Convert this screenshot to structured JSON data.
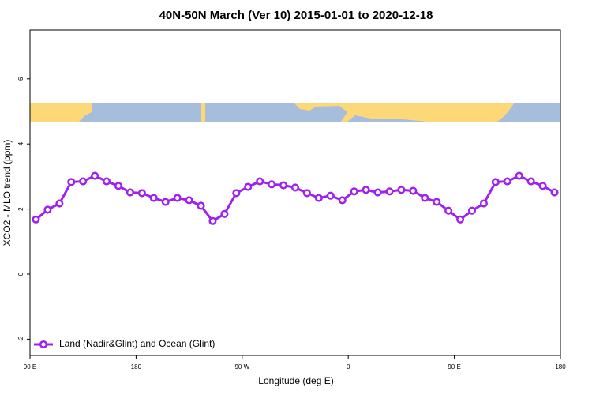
{
  "chart_data": {
    "type": "line",
    "title": "40N-50N March (Ver 10)   2015-01-01 to 2020-12-18",
    "xlabel": "Longitude (deg E)",
    "ylabel": "XCO2 - MLO trend (ppm)",
    "x": [
      95,
      105,
      115,
      125,
      135,
      145,
      155,
      165,
      175,
      185,
      195,
      205,
      215,
      225,
      235,
      245,
      255,
      265,
      275,
      285,
      295,
      305,
      315,
      325,
      335,
      345,
      355,
      365,
      375,
      385,
      395,
      405,
      415,
      425,
      435,
      445,
      455,
      465,
      475,
      485,
      495,
      505,
      515,
      525,
      535
    ],
    "series": [
      {
        "name": "Land (Nadir&Glint) and Ocean (Glint)",
        "color": "#a020f0",
        "values": [
          1.68,
          1.98,
          2.17,
          2.83,
          2.85,
          3.02,
          2.85,
          2.71,
          2.51,
          2.49,
          2.34,
          2.22,
          2.34,
          2.27,
          2.1,
          1.63,
          1.85,
          2.49,
          2.68,
          2.85,
          2.76,
          2.73,
          2.66,
          2.49,
          2.34,
          2.41,
          2.27,
          2.54,
          2.59,
          2.51,
          2.54,
          2.59,
          2.56,
          2.34,
          2.22,
          1.95,
          1.68,
          1.95,
          2.17,
          2.83,
          2.85,
          3.02,
          2.85,
          2.71,
          2.51
        ]
      }
    ],
    "xlim": [
      90,
      540
    ],
    "xticks": [
      {
        "value": 90,
        "label": "90 E"
      },
      {
        "value": 180,
        "label": "180"
      },
      {
        "value": 270,
        "label": "90 W"
      },
      {
        "value": 360,
        "label": "0"
      },
      {
        "value": 450,
        "label": "90 E"
      },
      {
        "value": 540,
        "label": "180"
      }
    ],
    "ylim": [
      -2.5,
      7.5
    ],
    "yticks": [
      -2,
      0,
      2,
      4,
      6
    ],
    "legend": "bottom-left"
  }
}
